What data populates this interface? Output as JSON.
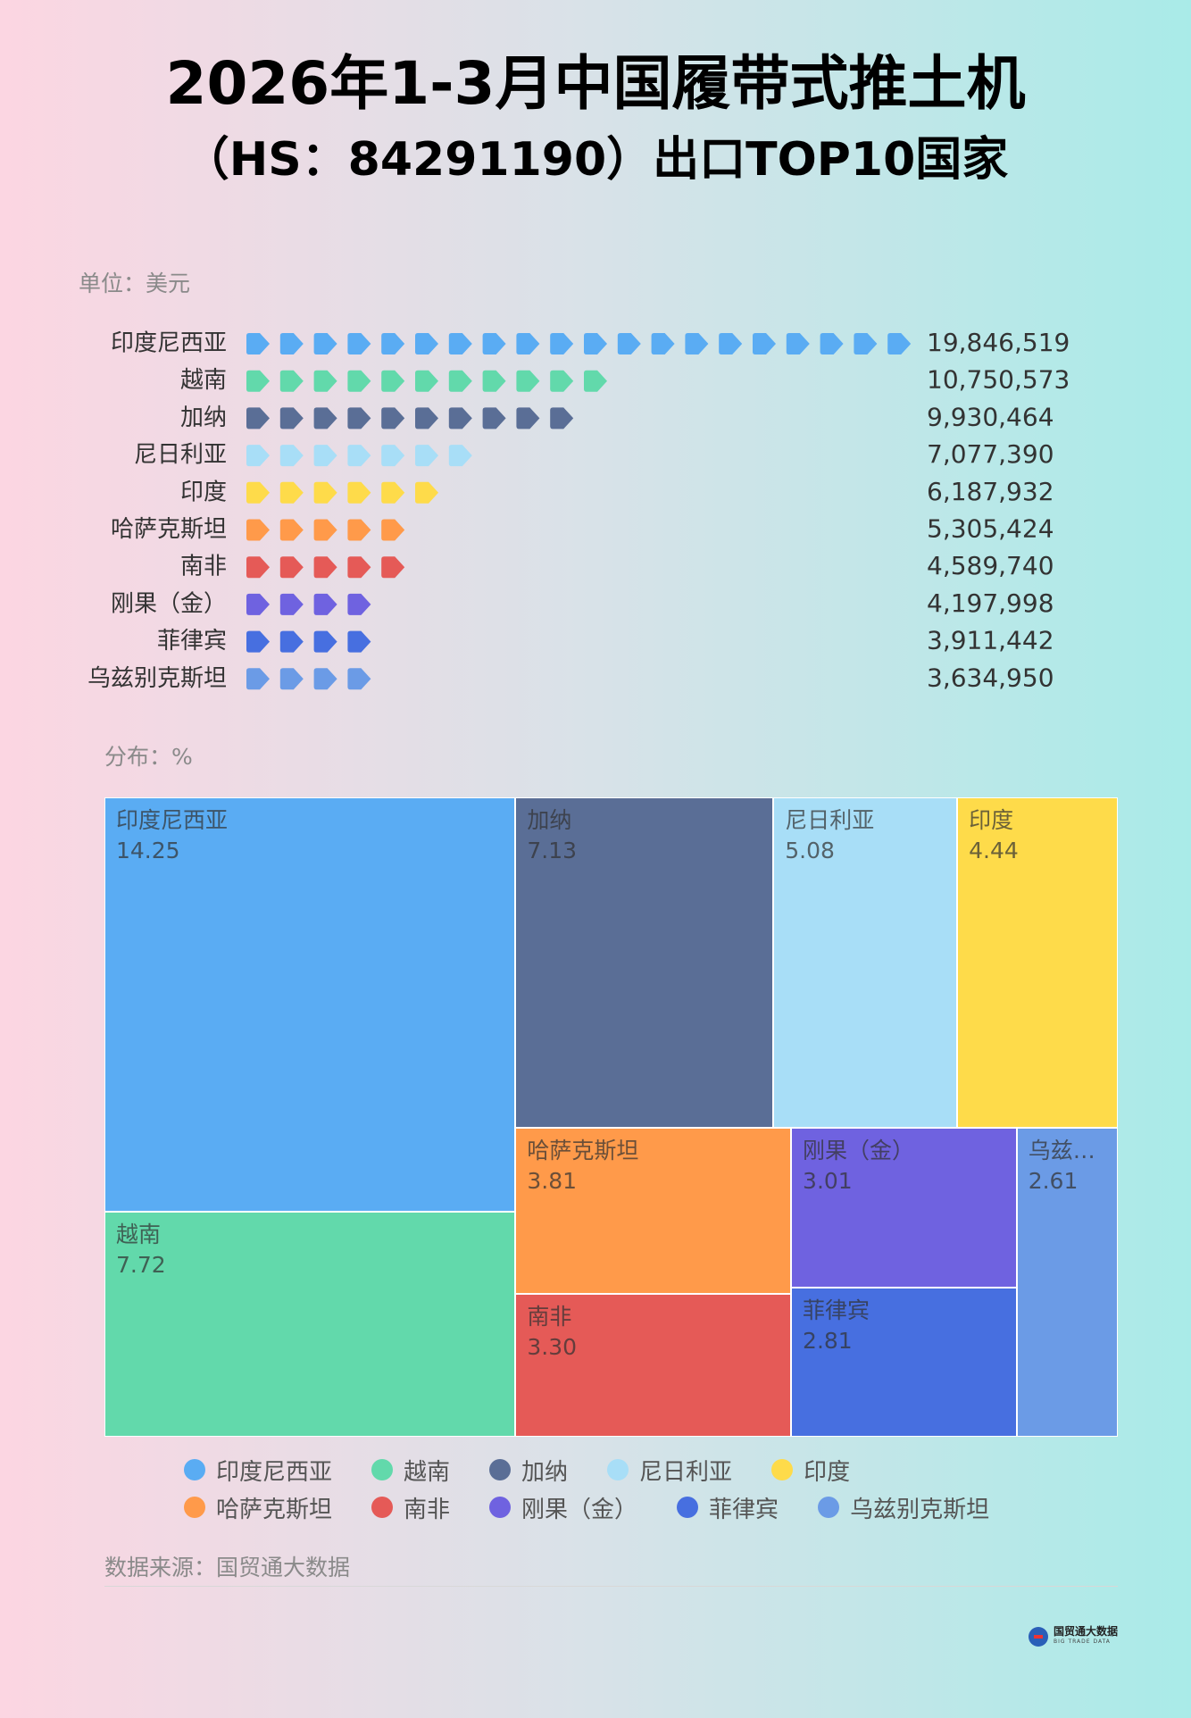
{
  "header": {
    "title": [
      "2026年1-3月中国履带式推土机",
      "（HS：84291190）出口TOP10国家"
    ]
  },
  "chart_data": [
    {
      "type": "pictorial-bar",
      "unit_label": "单位：美元",
      "categories": [
        "印度尼西亚",
        "越南",
        "加纳",
        "尼日利亚",
        "印度",
        "哈萨克斯坦",
        "南非",
        "刚果（金）",
        "菲律宾",
        "乌兹别克斯坦"
      ],
      "values": [
        19846519,
        10750573,
        9930464,
        7077390,
        6187932,
        5305424,
        4589740,
        4197998,
        3911442,
        3634950
      ],
      "value_labels": [
        "19,846,519",
        "10,750,573",
        "9,930,464",
        "7,077,390",
        "6,187,932",
        "5,305,424",
        "4,589,740",
        "4,197,998",
        "3,911,442",
        "3,634,950"
      ],
      "colors": [
        "#5aacf3",
        "#62d9ab",
        "#5a6e96",
        "#a8def7",
        "#fedb4a",
        "#ff9a4a",
        "#e55a57",
        "#6f62e0",
        "#476fe0",
        "#6b9be6"
      ]
    },
    {
      "type": "treemap",
      "title": "分布：%",
      "categories": [
        "印度尼西亚",
        "越南",
        "加纳",
        "尼日利亚",
        "印度",
        "哈萨克斯坦",
        "南非",
        "刚果（金）",
        "菲律宾",
        "乌兹别克斯坦"
      ],
      "values": [
        14.25,
        7.72,
        7.13,
        5.08,
        4.44,
        3.81,
        3.3,
        3.01,
        2.81,
        2.61
      ],
      "value_labels": [
        "14.25",
        "7.72",
        "7.13",
        "5.08",
        "4.44",
        "3.81",
        "3.30",
        "3.01",
        "2.81",
        "2.61"
      ],
      "colors": [
        "#5aacf3",
        "#62d9ab",
        "#5a6e96",
        "#a8def7",
        "#fedb4a",
        "#ff9a4a",
        "#e55a57",
        "#6f62e0",
        "#476fe0",
        "#6b9be6"
      ],
      "legend": "bottom"
    }
  ],
  "source": "数据来源：国贸通大数据",
  "logo": {
    "name": "国贸通大数据",
    "tagline": "BIG TRADE DATA"
  }
}
